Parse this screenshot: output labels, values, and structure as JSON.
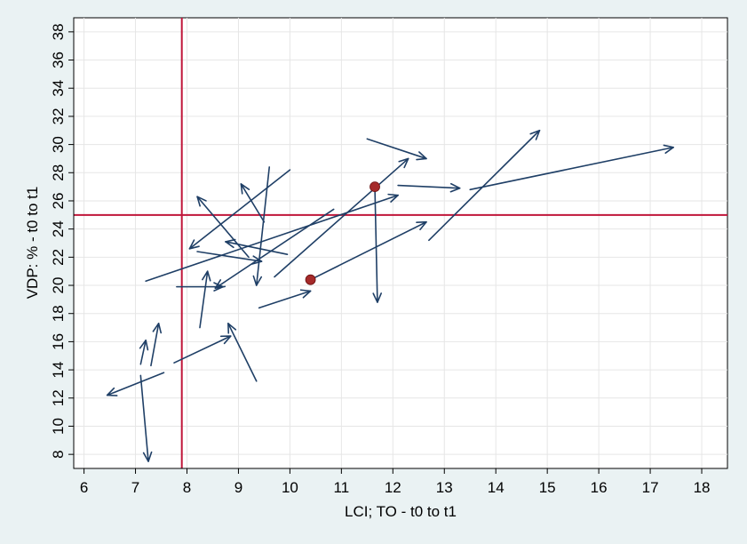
{
  "chart_data": {
    "type": "scatter",
    "title": "",
    "xlabel": "LCI; TO - t0 to t1",
    "ylabel": "VDP: % - t0 to t1",
    "xlim": [
      5.8,
      18.5
    ],
    "ylim": [
      7.0,
      39.0
    ],
    "x_ticks": [
      6,
      7,
      8,
      9,
      10,
      11,
      12,
      13,
      14,
      15,
      16,
      17,
      18
    ],
    "y_ticks": [
      8,
      10,
      12,
      14,
      16,
      18,
      20,
      22,
      24,
      26,
      28,
      30,
      32,
      34,
      36,
      38
    ],
    "grid": true,
    "legend": "none",
    "reference_lines": {
      "x": 7.9,
      "y": 25.0,
      "color": "#c0163a"
    },
    "arrow_color": "#1f3f66",
    "point_color": "#a52a2a",
    "arrows": [
      {
        "x0": 10.0,
        "y0": 28.2,
        "x1": 8.05,
        "y1": 22.6
      },
      {
        "x0": 9.6,
        "y0": 28.4,
        "x1": 9.35,
        "y1": 20.0
      },
      {
        "x0": 9.5,
        "y0": 24.5,
        "x1": 9.05,
        "y1": 27.2
      },
      {
        "x0": 9.2,
        "y0": 22.0,
        "x1": 8.2,
        "y1": 26.3
      },
      {
        "x0": 9.95,
        "y0": 22.2,
        "x1": 8.75,
        "y1": 23.1
      },
      {
        "x0": 8.2,
        "y0": 22.4,
        "x1": 9.45,
        "y1": 21.7
      },
      {
        "x0": 10.85,
        "y0": 25.4,
        "x1": 8.55,
        "y1": 19.8
      },
      {
        "x0": 7.2,
        "y0": 20.3,
        "x1": 12.1,
        "y1": 26.4
      },
      {
        "x0": 9.7,
        "y0": 20.6,
        "x1": 12.3,
        "y1": 29.0
      },
      {
        "x0": 11.5,
        "y0": 30.4,
        "x1": 12.65,
        "y1": 29.0
      },
      {
        "x0": 12.1,
        "y0": 27.1,
        "x1": 13.3,
        "y1": 26.9
      },
      {
        "x0": 13.5,
        "y0": 26.8,
        "x1": 17.45,
        "y1": 29.8
      },
      {
        "x0": 12.7,
        "y0": 23.2,
        "x1": 14.85,
        "y1": 31.0
      },
      {
        "x0": 10.4,
        "y0": 20.4,
        "x1": 12.65,
        "y1": 24.5
      },
      {
        "x0": 11.65,
        "y0": 27.0,
        "x1": 11.7,
        "y1": 18.8
      },
      {
        "x0": 9.4,
        "y0": 18.4,
        "x1": 10.4,
        "y1": 19.6
      },
      {
        "x0": 7.8,
        "y0": 19.9,
        "x1": 8.7,
        "y1": 19.9
      },
      {
        "x0": 8.25,
        "y0": 17.0,
        "x1": 8.4,
        "y1": 21.0
      },
      {
        "x0": 9.35,
        "y0": 13.2,
        "x1": 8.8,
        "y1": 17.3
      },
      {
        "x0": 7.75,
        "y0": 14.5,
        "x1": 8.85,
        "y1": 16.4
      },
      {
        "x0": 7.55,
        "y0": 13.8,
        "x1": 6.45,
        "y1": 12.2
      },
      {
        "x0": 7.1,
        "y0": 13.6,
        "x1": 7.25,
        "y1": 7.5
      },
      {
        "x0": 7.1,
        "y0": 14.4,
        "x1": 7.2,
        "y1": 16.1
      },
      {
        "x0": 7.3,
        "y0": 14.3,
        "x1": 7.45,
        "y1": 17.3
      }
    ],
    "points": [
      {
        "x": 11.65,
        "y": 27.0
      },
      {
        "x": 10.4,
        "y": 20.4
      }
    ]
  }
}
